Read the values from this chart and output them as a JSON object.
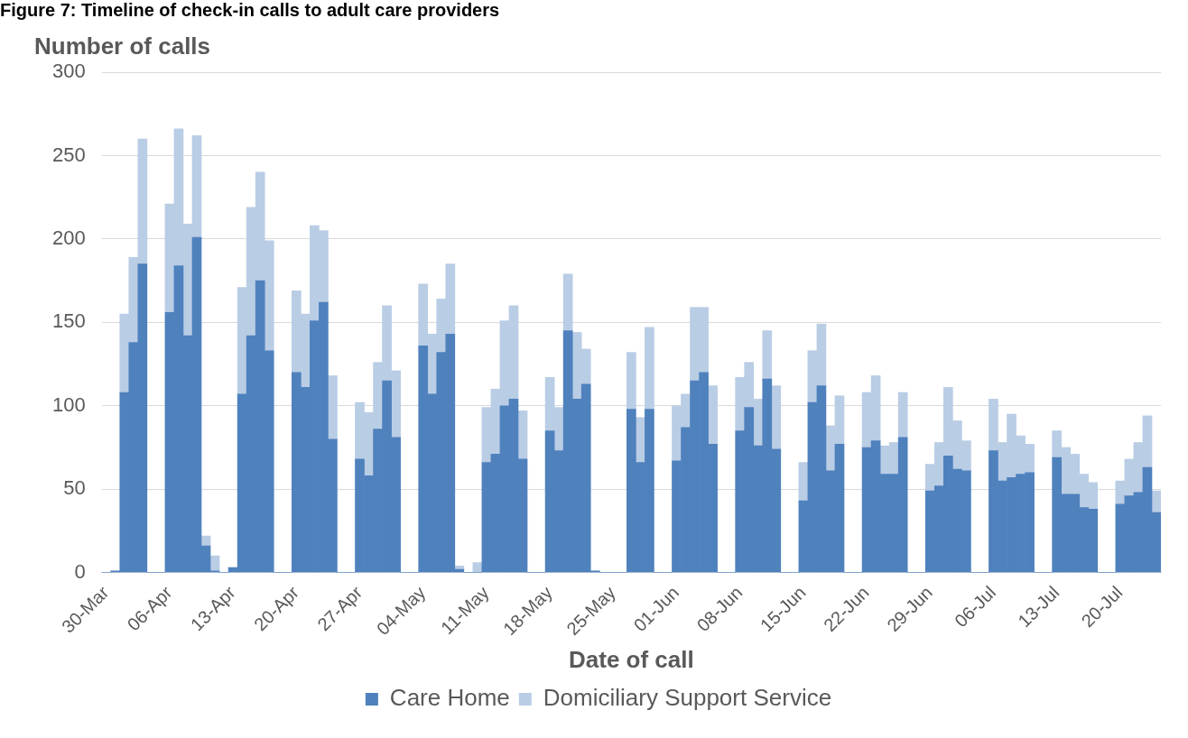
{
  "chart_data": {
    "type": "bar",
    "title": "Figure 7: Timeline of check-in calls to adult care providers",
    "xlabel": "Date of call",
    "ylabel": "Number of calls",
    "categories": [
      "30-Mar",
      null,
      null,
      null,
      null,
      null,
      null,
      "06-Apr",
      null,
      null,
      null,
      null,
      null,
      null,
      "13-Apr",
      null,
      null,
      null,
      null,
      null,
      null,
      "20-Apr",
      null,
      null,
      null,
      null,
      null,
      null,
      "27-Apr",
      null,
      null,
      null,
      null,
      null,
      null,
      "04-May",
      null,
      null,
      null,
      null,
      null,
      null,
      "11-May",
      null,
      null,
      null,
      null,
      null,
      null,
      "18-May",
      null,
      null,
      null,
      null,
      null,
      null,
      "25-May",
      null,
      null,
      null,
      null,
      null,
      null,
      "01-Jun",
      null,
      null,
      null,
      null,
      null,
      null,
      "08-Jun",
      null,
      null,
      null,
      null,
      null,
      null,
      "15-Jun",
      null,
      null,
      null,
      null,
      null,
      null,
      "22-Jun",
      null,
      null,
      null,
      null,
      null,
      null,
      "29-Jun",
      null,
      null,
      null,
      null,
      null,
      null,
      "06-Jul",
      null,
      null,
      null,
      null,
      null,
      null,
      "13-Jul",
      null,
      null,
      null,
      null,
      null,
      null,
      "20-Jul",
      null,
      null,
      null,
      null
    ],
    "series": [
      {
        "name": "Care Home",
        "color": "#4f81bd",
        "values": [
          0,
          1,
          108,
          138,
          185,
          0,
          0,
          156,
          184,
          142,
          201,
          16,
          1,
          0,
          3,
          107,
          142,
          175,
          133,
          0,
          0,
          120,
          111,
          151,
          162,
          80,
          0,
          0,
          68,
          58,
          86,
          115,
          81,
          0,
          0,
          136,
          107,
          132,
          143,
          2,
          0,
          0,
          66,
          71,
          100,
          104,
          68,
          0,
          0,
          85,
          73,
          145,
          104,
          113,
          1,
          0,
          0,
          0,
          98,
          66,
          98,
          0,
          0,
          67,
          87,
          115,
          120,
          77,
          0,
          0,
          85,
          99,
          76,
          116,
          74,
          0,
          0,
          43,
          102,
          112,
          61,
          77,
          0,
          0,
          75,
          79,
          59,
          59,
          81,
          0,
          0,
          49,
          52,
          70,
          62,
          61,
          0,
          0,
          73,
          55,
          57,
          59,
          60,
          0,
          0,
          69,
          47,
          47,
          39,
          38,
          0,
          0,
          41,
          46,
          48,
          63,
          36
        ]
      },
      {
        "name": "Domiciliary Support Service",
        "color": "#b9cde5",
        "values": [
          0,
          0,
          47,
          51,
          75,
          0,
          0,
          65,
          82,
          67,
          61,
          6,
          9,
          0,
          0,
          64,
          77,
          65,
          66,
          0,
          0,
          49,
          44,
          57,
          43,
          38,
          0,
          0,
          34,
          38,
          40,
          45,
          40,
          0,
          0,
          37,
          36,
          32,
          42,
          2,
          0,
          6,
          33,
          39,
          51,
          56,
          29,
          0,
          0,
          32,
          26,
          34,
          40,
          21,
          0,
          0,
          0,
          0,
          34,
          27,
          49,
          0,
          0,
          33,
          20,
          44,
          39,
          35,
          0,
          0,
          32,
          27,
          28,
          29,
          38,
          0,
          0,
          23,
          31,
          37,
          27,
          29,
          0,
          0,
          33,
          39,
          17,
          19,
          27,
          0,
          0,
          16,
          26,
          41,
          29,
          18,
          0,
          0,
          31,
          23,
          38,
          23,
          17,
          0,
          0,
          16,
          28,
          24,
          20,
          16,
          0,
          0,
          14,
          22,
          30,
          31,
          13
        ]
      }
    ],
    "stacked": true,
    "ylim": [
      0,
      300
    ],
    "yticks": [
      0,
      50,
      100,
      150,
      200,
      250,
      300
    ],
    "grid": "y",
    "legend": "bottom"
  }
}
